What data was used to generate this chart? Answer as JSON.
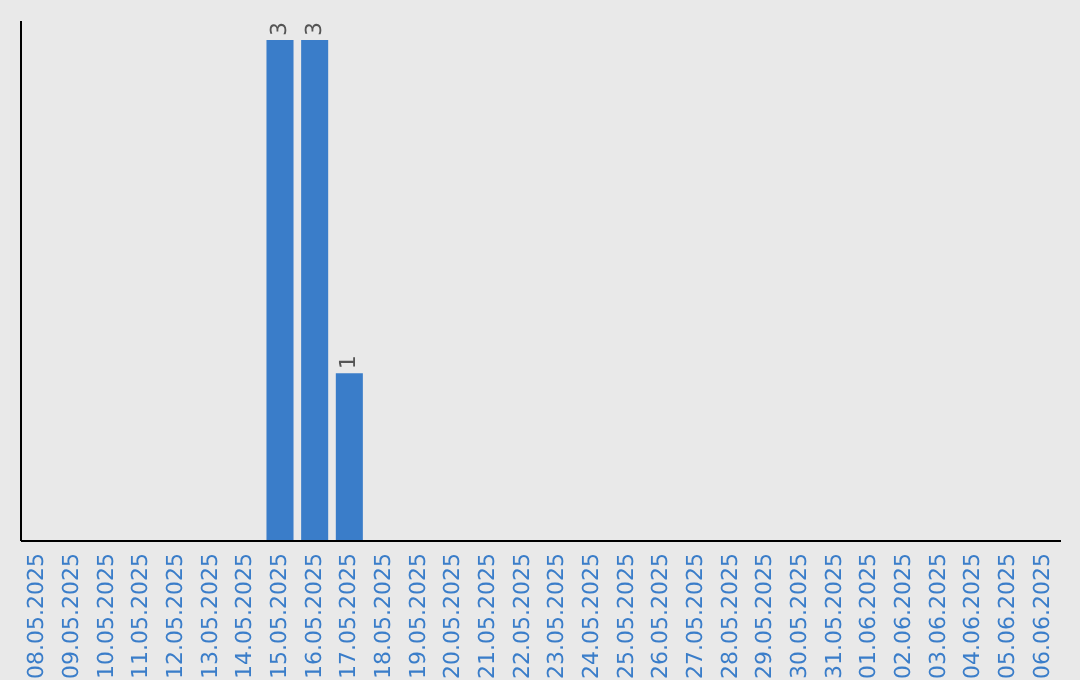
{
  "chart_data": {
    "type": "bar",
    "categories": [
      "08.05.2025",
      "09.05.2025",
      "10.05.2025",
      "11.05.2025",
      "12.05.2025",
      "13.05.2025",
      "14.05.2025",
      "15.05.2025",
      "16.05.2025",
      "17.05.2025",
      "18.05.2025",
      "19.05.2025",
      "20.05.2025",
      "21.05.2025",
      "22.05.2025",
      "23.05.2025",
      "24.05.2025",
      "25.05.2025",
      "26.05.2025",
      "27.05.2025",
      "28.05.2025",
      "29.05.2025",
      "30.05.2025",
      "31.05.2025",
      "01.06.2025",
      "02.06.2025",
      "03.06.2025",
      "04.06.2025",
      "05.06.2025",
      "06.06.2025"
    ],
    "values": [
      0,
      0,
      0,
      0,
      0,
      0,
      0,
      3,
      3,
      1,
      0,
      0,
      0,
      0,
      0,
      0,
      0,
      0,
      0,
      0,
      0,
      0,
      0,
      0,
      0,
      0,
      0,
      0,
      0,
      0
    ],
    "value_labels": [
      null,
      null,
      null,
      null,
      null,
      null,
      null,
      "3",
      "3",
      "1",
      null,
      null,
      null,
      null,
      null,
      null,
      null,
      null,
      null,
      null,
      null,
      null,
      null,
      null,
      null,
      null,
      null,
      null,
      null,
      null
    ],
    "color": "#3a7dc9"
  }
}
